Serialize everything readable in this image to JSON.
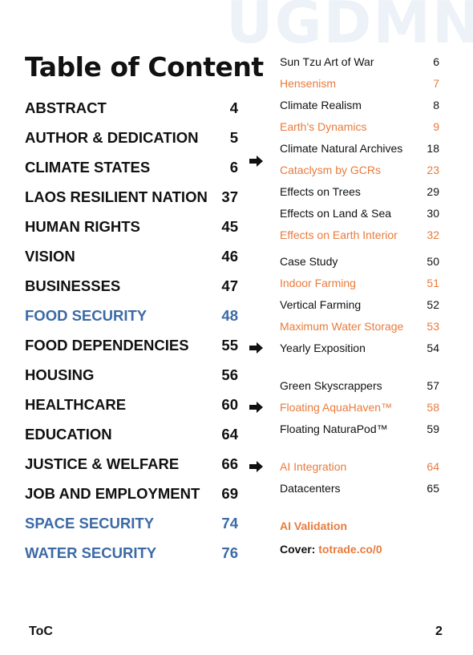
{
  "watermark": "UGDMN",
  "title": "Table of Content",
  "left_entries": [
    {
      "label": "ABSTRACT",
      "page": "4",
      "color": "#111111"
    },
    {
      "label": "AUTHOR & DEDICATION",
      "page": "5",
      "color": "#111111"
    },
    {
      "label": "CLIMATE STATES",
      "page": "6",
      "color": "#111111"
    },
    {
      "label": "LAOS RESILIENT NATION",
      "page": "37",
      "color": "#111111"
    },
    {
      "label": "HUMAN RIGHTS",
      "page": "45",
      "color": "#111111"
    },
    {
      "label": "VISION",
      "page": "46",
      "color": "#111111"
    },
    {
      "label": "BUSINESSES",
      "page": "47",
      "color": "#111111"
    },
    {
      "label": "FOOD SECURITY",
      "page": "48",
      "color": "#3b6aa6"
    },
    {
      "label": "FOOD DEPENDENCIES",
      "page": "55",
      "color": "#111111"
    },
    {
      "label": "HOUSING",
      "page": "56",
      "color": "#111111"
    },
    {
      "label": "HEALTHCARE",
      "page": "60",
      "color": "#111111"
    },
    {
      "label": "EDUCATION",
      "page": "64",
      "color": "#111111"
    },
    {
      "label": "JUSTICE & WELFARE",
      "page": "66",
      "color": "#111111"
    },
    {
      "label": "JOB AND EMPLOYMENT",
      "page": "69",
      "color": "#111111"
    },
    {
      "label": "SPACE SECURITY",
      "page": "74",
      "color": "#3b6aa6"
    },
    {
      "label": "WATER SECURITY",
      "page": "76",
      "color": "#3b6aa6"
    }
  ],
  "right_groups": [
    [
      {
        "label": "Sun Tzu Art of War",
        "page": "6",
        "color": "#111111"
      },
      {
        "label": "Hensenism",
        "page": "7",
        "color": "#e87b3c"
      },
      {
        "label": "Climate Realism",
        "page": "8",
        "color": "#111111"
      },
      {
        "label": "Earth's Dynamics",
        "page": "9",
        "color": "#e87b3c"
      },
      {
        "label": "Climate Natural Archives",
        "page": "18",
        "color": "#111111"
      },
      {
        "label": "Cataclysm by GCRs",
        "page": "23",
        "color": "#e87b3c"
      },
      {
        "label": "Effects on Trees",
        "page": "29",
        "color": "#111111"
      },
      {
        "label": "Effects on Land & Sea",
        "page": "30",
        "color": "#111111"
      },
      {
        "label": "Effects on Earth Interior",
        "page": "32",
        "color": "#e87b3c"
      }
    ],
    [
      {
        "label": "Case Study",
        "page": "50",
        "color": "#111111"
      },
      {
        "label": "Indoor Farming",
        "page": "51",
        "color": "#e87b3c"
      },
      {
        "label": "Vertical Farming",
        "page": "52",
        "color": "#111111"
      },
      {
        "label": "Maximum Water Storage",
        "page": "53",
        "color": "#e87b3c"
      },
      {
        "label": "Yearly Exposition",
        "page": "54",
        "color": "#111111"
      }
    ],
    [
      {
        "label": "Green Skyscrappers",
        "page": "57",
        "color": "#111111"
      },
      {
        "label": "Floating AquaHaven™",
        "page": "58",
        "color": "#e87b3c"
      },
      {
        "label": "Floating NaturaPod™",
        "page": "59",
        "color": "#111111"
      }
    ],
    [
      {
        "label": "AI Integration",
        "page": "64",
        "color": "#e87b3c"
      },
      {
        "label": "Datacenters",
        "page": "65",
        "color": "#111111"
      }
    ]
  ],
  "ai_validation": "AI Validation",
  "cover_label": "Cover:",
  "cover_link": "totrade.co/0",
  "footer": {
    "label": "ToC",
    "page": "2"
  },
  "arrow_icon": "right-arrow-icon",
  "colors": {
    "accent_orange": "#e87b3c",
    "accent_blue": "#3b6aa6",
    "watermark": "#edf2f8"
  }
}
